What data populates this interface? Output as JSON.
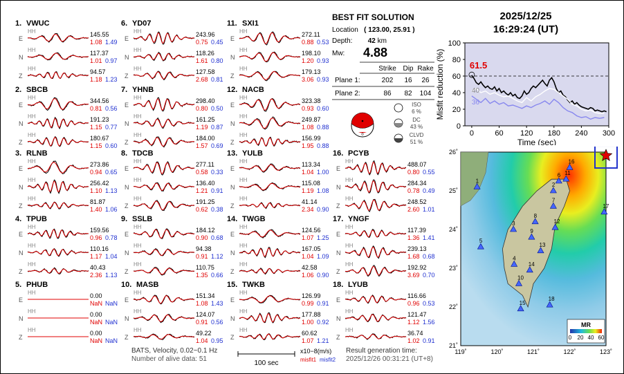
{
  "solution": {
    "title": "BEST FIT SOLUTION",
    "location_label": "Location",
    "location_value": "( 123.00, 25.91 )",
    "depth_label": "Depth:",
    "depth_value": "42",
    "depth_unit": "km",
    "mw_label": "Mw:",
    "mw_value": "4.88",
    "plane_headers": [
      "Strike",
      "Dip",
      "Rake"
    ],
    "plane1_label": "Plane 1:",
    "plane1": [
      "202",
      "16",
      "26"
    ],
    "plane2_label": "Plane 2:",
    "plane2": [
      "86",
      "82",
      "104"
    ],
    "iso_label": "ISO",
    "iso_pct": "6 %",
    "dc_label": "DC",
    "dc_pct": "43 %",
    "clvd_label": "CLVD",
    "clvd_pct": "51 %"
  },
  "header": {
    "date": "2025/12/25",
    "time": "16:29:24  (UT)"
  },
  "colors": {
    "obs": "#000000",
    "syn": "#e00000",
    "misfit1": "#e00000",
    "misfit2": "#1f2fd0",
    "plot_bg": "#d9d9ee",
    "star": "#e00000",
    "station": "#3355ee"
  },
  "footer": {
    "data_info": "BATS, Velocity, 0.02~0.1 Hz",
    "alive": "Number of alive data: 51",
    "scale_label": "100 sec",
    "amp_unit": "x10−8(m/s)",
    "misfit1_label": "misfit1",
    "misfit2_label": "misfit2",
    "result_label": "Result generation time:",
    "result_time": "2025/12/26 00:31:21 (UT+8)"
  },
  "traces": {
    "channel_code": "HH",
    "components": [
      "E",
      "N",
      "Z"
    ],
    "stations": [
      {
        "num": "1.",
        "name": "VWUC",
        "amp": [
          "145.55",
          "117.37",
          "94.57"
        ],
        "m1": [
          "1.08",
          "1.01",
          "1.18"
        ],
        "m2": [
          "1.49",
          "0.97",
          "1.23"
        ]
      },
      {
        "num": "2.",
        "name": "SBCB",
        "amp": [
          "344.56",
          "191.23",
          "180.67"
        ],
        "m1": [
          "0.81",
          "1.15",
          "1.15"
        ],
        "m2": [
          "0.56",
          "0.77",
          "0.60"
        ]
      },
      {
        "num": "3.",
        "name": "RLNB",
        "amp": [
          "273.86",
          "256.42",
          "81.87"
        ],
        "m1": [
          "0.94",
          "1.10",
          "1.40"
        ],
        "m2": [
          "0.65",
          "1.13",
          "1.06"
        ]
      },
      {
        "num": "4.",
        "name": "TPUB",
        "amp": [
          "159.56",
          "110.16",
          "40.43"
        ],
        "m1": [
          "0.96",
          "1.17",
          "2.36"
        ],
        "m2": [
          "0.78",
          "1.04",
          "1.13"
        ]
      },
      {
        "num": "5.",
        "name": "PHUB",
        "amp": [
          "0.00",
          "0.00",
          "0.00"
        ],
        "m1": [
          "NaN",
          "NaN",
          "NaN"
        ],
        "m2": [
          "NaN",
          "NaN",
          "NaN"
        ]
      },
      {
        "num": "6.",
        "name": "YD07",
        "amp": [
          "243.96",
          "118.26",
          "127.58"
        ],
        "m1": [
          "0.75",
          "1.61",
          "2.68"
        ],
        "m2": [
          "0.45",
          "0.80",
          "0.81"
        ]
      },
      {
        "num": "7.",
        "name": "YHNB",
        "amp": [
          "298.40",
          "161.25",
          "184.00"
        ],
        "m1": [
          "0.80",
          "1.19",
          "1.57"
        ],
        "m2": [
          "0.50",
          "0.87",
          "0.69"
        ]
      },
      {
        "num": "8.",
        "name": "TDCB",
        "amp": [
          "277.11",
          "136.40",
          "191.25"
        ],
        "m1": [
          "0.58",
          "1.21",
          "0.62"
        ],
        "m2": [
          "0.33",
          "0.91",
          "0.38"
        ]
      },
      {
        "num": "9.",
        "name": "SSLB",
        "amp": [
          "184.12",
          "94.38",
          "110.75"
        ],
        "m1": [
          "0.90",
          "0.91",
          "1.35"
        ],
        "m2": [
          "0.68",
          "1.12",
          "0.66"
        ]
      },
      {
        "num": "10.",
        "name": "MASB",
        "amp": [
          "151.34",
          "124.07",
          "49.22"
        ],
        "m1": [
          "1.08",
          "0.91",
          "1.04"
        ],
        "m2": [
          "1.43",
          "0.56",
          "0.95"
        ]
      },
      {
        "num": "11.",
        "name": "SXI1",
        "amp": [
          "272.11",
          "198.10",
          "179.13"
        ],
        "m1": [
          "0.88",
          "1.20",
          "3.06"
        ],
        "m2": [
          "0.53",
          "0.93",
          "0.93"
        ]
      },
      {
        "num": "12.",
        "name": "NACB",
        "amp": [
          "323.38",
          "249.87",
          "156.99"
        ],
        "m1": [
          "0.93",
          "1.08",
          "1.95"
        ],
        "m2": [
          "0.60",
          "0.88",
          "0.88"
        ]
      },
      {
        "num": "13.",
        "name": "YULB",
        "amp": [
          "113.34",
          "115.08",
          "41.14"
        ],
        "m1": [
          "1.04",
          "1.19",
          "2.34"
        ],
        "m2": [
          "1.00",
          "1.08",
          "0.90"
        ]
      },
      {
        "num": "14.",
        "name": "TWGB",
        "amp": [
          "124.56",
          "167.05",
          "42.58"
        ],
        "m1": [
          "1.07",
          "1.04",
          "1.06"
        ],
        "m2": [
          "1.25",
          "1.09",
          "0.90"
        ]
      },
      {
        "num": "15.",
        "name": "TWKB",
        "amp": [
          "126.99",
          "177.88",
          "60.62"
        ],
        "m1": [
          "0.99",
          "1.00",
          "1.07"
        ],
        "m2": [
          "0.91",
          "0.92",
          "1.21"
        ]
      },
      {
        "num": "16.",
        "name": "PCYB",
        "amp": [
          "488.07",
          "284.34",
          "248.52"
        ],
        "m1": [
          "0.80",
          "0.78",
          "2.60"
        ],
        "m2": [
          "0.55",
          "0.49",
          "1.01"
        ]
      },
      {
        "num": "17.",
        "name": "YNGF",
        "amp": [
          "117.39",
          "239.13",
          "192.92"
        ],
        "m1": [
          "1.36",
          "1.68",
          "3.69"
        ],
        "m2": [
          "1.41",
          "0.68",
          "0.70"
        ]
      },
      {
        "num": "18.",
        "name": "LYUB",
        "amp": [
          "116.66",
          "121.47",
          "36.74"
        ],
        "m1": [
          "0.96",
          "1.12",
          "1.02"
        ],
        "m2": [
          "0.53",
          "1.56",
          "0.91"
        ]
      }
    ]
  },
  "chart_data": [
    {
      "type": "line",
      "title": "Misfit reduction vs time",
      "xlabel": "Time (sec)",
      "ylabel": "Misfit reduction (%)",
      "xlim": [
        -15,
        300
      ],
      "ylim": [
        0,
        100
      ],
      "xticks": [
        0,
        60,
        120,
        180,
        240,
        300
      ],
      "yticks": [
        0,
        20,
        40,
        60,
        80,
        100
      ],
      "best_label": "61.5",
      "best_point": {
        "x": 0,
        "y": 61.5
      },
      "threshold": 60,
      "side_labels": [
        "40",
        "36"
      ],
      "series": [
        {
          "name": "best",
          "color": "#000000",
          "x": [
            0,
            5,
            10,
            15,
            20,
            25,
            30,
            35,
            40,
            45,
            50,
            55,
            60,
            65,
            70,
            75,
            80,
            85,
            90,
            95,
            100,
            105,
            110,
            115,
            120,
            125,
            130,
            135,
            140,
            145,
            150,
            155,
            160,
            165,
            170,
            175,
            180,
            185,
            190,
            195,
            200,
            205,
            210,
            215,
            220,
            225,
            230,
            235,
            240,
            245,
            250,
            255,
            260,
            265,
            270,
            275,
            280,
            285,
            290,
            295
          ],
          "y": [
            61,
            57,
            52,
            50,
            53,
            49,
            46,
            48,
            45,
            44,
            47,
            42,
            45,
            40,
            42,
            39,
            37,
            40,
            36,
            38,
            34,
            33,
            36,
            42,
            38,
            40,
            45,
            48,
            46,
            49,
            52,
            55,
            51,
            48,
            55,
            58,
            53,
            45,
            40,
            42,
            37,
            35,
            31,
            28,
            30,
            26,
            28,
            25,
            23,
            22,
            21,
            20,
            22,
            21,
            18,
            19,
            18,
            17,
            18,
            17
          ]
        },
        {
          "name": "white",
          "color": "#ffffff",
          "x": [
            0,
            10,
            20,
            30,
            40,
            50,
            60,
            70,
            80,
            90,
            100,
            110,
            120,
            130,
            140,
            150,
            160,
            170,
            180,
            190,
            200,
            210,
            220,
            230,
            240,
            250,
            260,
            270,
            280,
            290
          ],
          "y": [
            42,
            45,
            40,
            42,
            38,
            40,
            37,
            35,
            36,
            33,
            30,
            28,
            34,
            30,
            35,
            38,
            42,
            45,
            44,
            40,
            36,
            32,
            26,
            24,
            20,
            18,
            19,
            16,
            15,
            15
          ]
        },
        {
          "name": "mean",
          "color": "#8888ee",
          "x": [
            0,
            10,
            20,
            30,
            40,
            50,
            60,
            70,
            80,
            90,
            100,
            110,
            120,
            130,
            140,
            150,
            160,
            170,
            180,
            190,
            200,
            210,
            220,
            230,
            240,
            250,
            260,
            270,
            280,
            290
          ],
          "y": [
            36,
            32,
            28,
            33,
            27,
            30,
            26,
            28,
            24,
            25,
            23,
            21,
            24,
            22,
            25,
            27,
            30,
            26,
            32,
            28,
            22,
            18,
            16,
            12,
            10,
            11,
            8,
            10,
            9,
            10
          ]
        }
      ]
    },
    {
      "type": "scatter",
      "title": "Station map",
      "xlim": [
        119,
        123
      ],
      "ylim": [
        21,
        26
      ],
      "xticks": [
        "119˚",
        "120˚",
        "121˚",
        "122˚",
        "123˚"
      ],
      "yticks": [
        "21˚",
        "22˚",
        "23˚",
        "24˚",
        "25˚",
        "26˚"
      ],
      "legend_title": "MR",
      "legend_ticks": [
        "0",
        "20",
        "40",
        "60"
      ],
      "epicenter": {
        "lon": 123.0,
        "lat": 25.91
      },
      "stations": [
        {
          "id": "1",
          "lon": 119.45,
          "lat": 25.1
        },
        {
          "id": "2",
          "lon": 121.55,
          "lat": 25.0
        },
        {
          "id": "3",
          "lon": 120.45,
          "lat": 24.0
        },
        {
          "id": "4",
          "lon": 120.47,
          "lat": 23.1
        },
        {
          "id": "5",
          "lon": 119.55,
          "lat": 23.55
        },
        {
          "id": "6",
          "lon": 121.7,
          "lat": 25.25
        },
        {
          "id": "7",
          "lon": 121.55,
          "lat": 24.6
        },
        {
          "id": "8",
          "lon": 121.05,
          "lat": 24.2
        },
        {
          "id": "9",
          "lon": 120.95,
          "lat": 23.8
        },
        {
          "id": "10",
          "lon": 120.6,
          "lat": 22.6
        },
        {
          "id": "11",
          "lon": 121.9,
          "lat": 25.3
        },
        {
          "id": "12",
          "lon": 121.6,
          "lat": 24.05
        },
        {
          "id": "13",
          "lon": 121.2,
          "lat": 23.45
        },
        {
          "id": "14",
          "lon": 120.9,
          "lat": 22.95
        },
        {
          "id": "15",
          "lon": 120.65,
          "lat": 21.95
        },
        {
          "id": "16",
          "lon": 122.0,
          "lat": 25.6
        },
        {
          "id": "17",
          "lon": 122.95,
          "lat": 24.45
        },
        {
          "id": "18",
          "lon": 121.45,
          "lat": 22.05
        }
      ]
    }
  ]
}
